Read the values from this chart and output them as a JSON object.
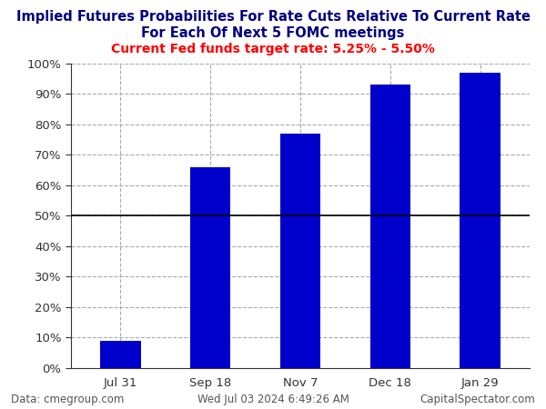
{
  "title_line1": "Implied Futures Probabilities For Rate Cuts Relative To Current Rate",
  "title_line2": "For Each Of Next 5 FOMC meetings",
  "subtitle": "Current Fed funds target rate: 5.25% - 5.50%",
  "categories": [
    "Jul 31",
    "Sep 18",
    "Nov 7",
    "Dec 18",
    "Jan 29"
  ],
  "values": [
    9,
    66,
    77,
    93,
    97
  ],
  "bar_color": "#0000CC",
  "title_color": "#000080",
  "subtitle_color": "#FF0000",
  "tick_color": "#333333",
  "background_color": "#FFFFFF",
  "grid_color": "#AAAAAA",
  "footer_left": "Data: cmegroup.com",
  "footer_center": "Wed Jul 03 2024 6:49:26 AM",
  "footer_right": "CapitalSpectator.com",
  "footer_color": "#555555",
  "ylim": [
    0,
    100
  ],
  "yticks": [
    0,
    10,
    20,
    30,
    40,
    50,
    60,
    70,
    80,
    90,
    100
  ],
  "hline_y": 50,
  "title_fontsize": 10.5,
  "subtitle_fontsize": 10,
  "tick_fontsize": 9.5,
  "footer_fontsize": 8.5
}
